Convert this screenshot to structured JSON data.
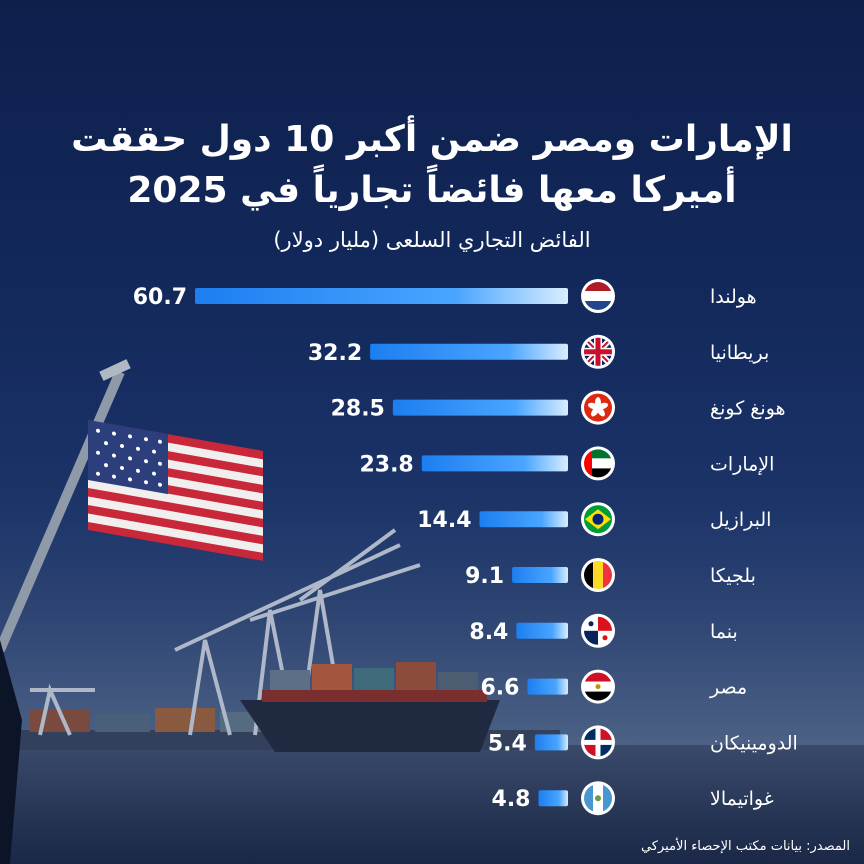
{
  "title_line1": "الإمارات ومصر ضمن أكبر 10 دول حققت",
  "title_line2": "أميركا معها فائضاً تجارياً في 2025",
  "subtitle": "الفائض التجاري السلعى (مليار دولار)",
  "source": "المصدر: بيانات مكتب الإحصاء الأميركي",
  "colors": {
    "bar_start": "#1c7ef0",
    "bar_end": "#d8edff",
    "background": "#10204a"
  },
  "chart_data": {
    "type": "bar",
    "orientation": "horizontal",
    "direction": "right-to-left",
    "categories": [
      "هولندا",
      "بريطانيا",
      "هونغ كونغ",
      "الإمارات",
      "البرازيل",
      "بلجيكا",
      "بنما",
      "مصر",
      "الدومينيكان",
      "غواتيمالا"
    ],
    "values": [
      60.7,
      32.2,
      28.5,
      23.8,
      14.4,
      9.1,
      8.4,
      6.6,
      5.4,
      4.8
    ],
    "flags": [
      "netherlands-flag",
      "uk-flag",
      "hong-kong-flag",
      "uae-flag",
      "brazil-flag",
      "belgium-flag",
      "panama-flag",
      "egypt-flag",
      "dominican-flag",
      "guatemala-flag"
    ],
    "value_labels": [
      "60.7",
      "32.2",
      "28.5",
      "23.8",
      "14.4",
      "9.1",
      "8.4",
      "6.6",
      "5.4",
      "4.8"
    ],
    "title": "الإمارات ومصر ضمن أكبر 10 دول حققت أميركا معها فائضاً تجارياً في 2025",
    "ylabel": "الفائض التجاري السلعى (مليار دولار)",
    "grid": false
  }
}
